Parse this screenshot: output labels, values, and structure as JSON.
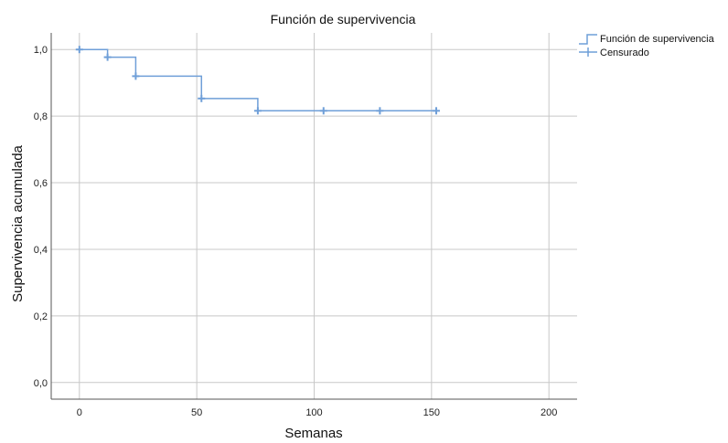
{
  "chart_data": {
    "type": "line",
    "title": "Función de supervivencia",
    "xlabel": "Semanas",
    "ylabel": "Supervivencia acumulada",
    "xlim": [
      -12,
      212
    ],
    "ylim": [
      -0.05,
      1.05
    ],
    "xticks": [
      0,
      50,
      100,
      150,
      200
    ],
    "xtick_labels": [
      "0",
      "50",
      "100",
      "150",
      "200"
    ],
    "yticks": [
      0.0,
      0.2,
      0.4,
      0.6,
      0.8,
      1.0
    ],
    "ytick_labels": [
      "0,0",
      "0,2",
      "0,4",
      "0,6",
      "0,8",
      "1,0"
    ],
    "grid": true,
    "legend_position": "top-right",
    "colors": {
      "series": "#6f9fd8",
      "grid": "#c8c8c8",
      "axis": "#555555"
    },
    "series": [
      {
        "name": "Función de supervivencia",
        "type": "step",
        "x": [
          0,
          12,
          24,
          52,
          76,
          152
        ],
        "y": [
          1.0,
          0.977,
          0.92,
          0.853,
          0.816,
          0.816
        ]
      },
      {
        "name": "Censurado",
        "type": "scatter",
        "marker": "plus",
        "x": [
          0,
          12,
          24,
          52,
          76,
          104,
          128,
          152
        ],
        "y": [
          1.0,
          0.977,
          0.92,
          0.853,
          0.816,
          0.816,
          0.816,
          0.816
        ]
      }
    ]
  }
}
